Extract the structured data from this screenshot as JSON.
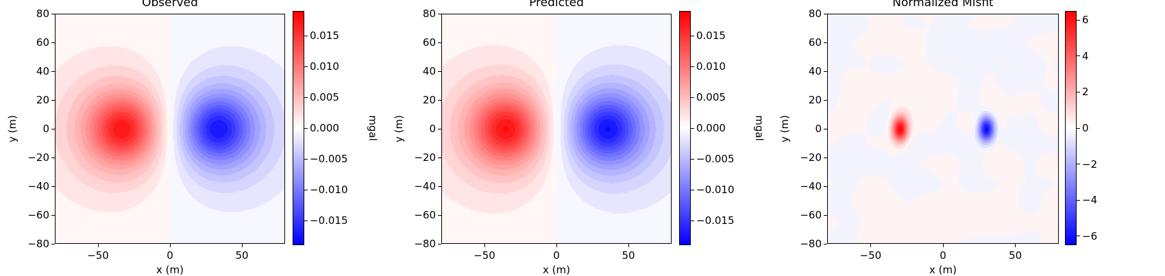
{
  "chart_data": [
    {
      "type": "heatmap",
      "title": "Observed",
      "xlabel": "x (m)",
      "ylabel": "y (m)",
      "xlim": [
        -80,
        80
      ],
      "ylim": [
        -80,
        80
      ],
      "xticks": [
        -50,
        0,
        50
      ],
      "xtick_labels": [
        "−50",
        "0",
        "50"
      ],
      "yticks": [
        80,
        60,
        40,
        20,
        0,
        -20,
        -40,
        -60,
        -80
      ],
      "ytick_labels": [
        "80",
        "60",
        "40",
        "20",
        "0",
        "−20",
        "−40",
        "−60",
        "−80"
      ],
      "colormap": "bwr",
      "colorbar": {
        "label": "mgal",
        "range": [
          -0.019,
          0.019
        ],
        "ticks": [
          0.015,
          0.01,
          0.005,
          0.0,
          -0.005,
          -0.01,
          -0.015
        ],
        "tick_labels": [
          "0.015",
          "0.010",
          "0.005",
          "0.000",
          "−0.005",
          "−0.010",
          "−0.015"
        ]
      },
      "field": {
        "positive_peak": {
          "x": -33,
          "y": 0,
          "value": 0.019
        },
        "negative_peak": {
          "x": 33,
          "y": 0,
          "value": -0.019
        }
      }
    },
    {
      "type": "heatmap",
      "title": "Predicted",
      "xlabel": "x (m)",
      "ylabel": "y (m)",
      "xlim": [
        -80,
        80
      ],
      "ylim": [
        -80,
        80
      ],
      "xticks": [
        -50,
        0,
        50
      ],
      "xtick_labels": [
        "−50",
        "0",
        "50"
      ],
      "yticks": [
        80,
        60,
        40,
        20,
        0,
        -20,
        -40,
        -60,
        -80
      ],
      "ytick_labels": [
        "80",
        "60",
        "40",
        "20",
        "0",
        "−20",
        "−40",
        "−60",
        "−80"
      ],
      "colormap": "bwr",
      "colorbar": {
        "label": "mgal",
        "range": [
          -0.019,
          0.019
        ],
        "ticks": [
          0.015,
          0.01,
          0.005,
          0.0,
          -0.005,
          -0.01,
          -0.015
        ],
        "tick_labels": [
          "0.015",
          "0.010",
          "0.005",
          "0.000",
          "−0.005",
          "−0.010",
          "−0.015"
        ]
      },
      "field": {
        "positive_peak": {
          "x": -35,
          "y": 0,
          "value": 0.019
        },
        "negative_peak": {
          "x": 35,
          "y": 0,
          "value": -0.019
        }
      }
    },
    {
      "type": "heatmap",
      "title": "Normalized Misfit",
      "xlabel": "x (m)",
      "ylabel": "y (m)",
      "xlim": [
        -80,
        80
      ],
      "ylim": [
        -80,
        80
      ],
      "xticks": [
        -50,
        0,
        50
      ],
      "xtick_labels": [
        "−50",
        "0",
        "50"
      ],
      "yticks": [
        80,
        60,
        40,
        20,
        0,
        -20,
        -40,
        -60,
        -80
      ],
      "ytick_labels": [
        "80",
        "60",
        "40",
        "20",
        "0",
        "−20",
        "−40",
        "−60",
        "−80"
      ],
      "colormap": "bwr",
      "colorbar": {
        "label": "",
        "range": [
          -6.5,
          6.5
        ],
        "ticks": [
          6,
          4,
          2,
          0,
          -2,
          -4,
          -6
        ],
        "tick_labels": [
          "6",
          "4",
          "2",
          "0",
          "−2",
          "−4",
          "−6"
        ]
      },
      "field": {
        "positive_peak": {
          "x": -30,
          "y": 0,
          "value": 6.5
        },
        "negative_peak": {
          "x": 30,
          "y": 0,
          "value": -6.5
        }
      }
    }
  ]
}
